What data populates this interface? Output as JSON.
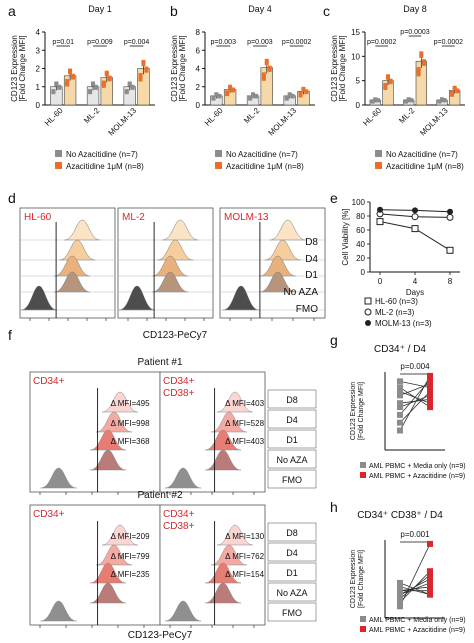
{
  "colors": {
    "gray": "#8c8c8c",
    "orange": "#e8702a",
    "orange_light": "#f3c48f",
    "red": "#d9272e",
    "red_light": "#f1b3ad",
    "bar_fill": "#f6d9a8"
  },
  "labels": {
    "fold": "[Fold Change MFI]",
    "cd123": "CD123-PeCy7",
    "cell_viability": "Cell Viability [%]",
    "days": "Days"
  },
  "panel_letters": [
    "a",
    "b",
    "c",
    "d",
    "e",
    "f",
    "g",
    "h"
  ],
  "legend_abc": [
    {
      "text": "No Azacitidine (n=7)",
      "color": "#8c8c8c"
    },
    {
      "text": "Azacitidine 1μM (n=8)",
      "color": "#e8702a"
    }
  ],
  "hist_d": {
    "samples": [
      "HL-60",
      "ML-2",
      "MOLM-13"
    ],
    "rows": [
      "D8",
      "D4",
      "D1",
      "No AZA",
      "FMO"
    ],
    "xlabel": "CD123-PeCy7"
  },
  "hist_f": {
    "patients": [
      {
        "title": "Patient #1",
        "gates": [
          "CD34+",
          "CD34+ CD38+"
        ],
        "mfi_left": [
          "Δ MFI=495",
          "Δ MFI=998",
          "Δ MFI=368"
        ],
        "mfi_right": [
          "Δ MFI=403",
          "Δ MFI=528",
          "Δ MFI=403"
        ]
      },
      {
        "title": "Patient #2",
        "gates": [
          "CD34+",
          "CD34+ CD38+"
        ],
        "mfi_left": [
          "Δ MFI=209",
          "Δ MFI=799",
          "Δ MFI=235"
        ],
        "mfi_right": [
          "Δ MFI=130",
          "Δ MFI=762",
          "Δ MFI=154"
        ]
      }
    ],
    "rows": [
      "D8",
      "D4",
      "D1",
      "No AZA",
      "FMO"
    ],
    "xlabel": "CD123-PeCy7"
  },
  "chart_data": [
    {
      "panel": "a",
      "type": "bar",
      "title": "Day 1",
      "ylabel": "CD123 Expression",
      "ylabel2": "[Fold Change MFI]",
      "ylim": [
        0,
        4
      ],
      "yticks": [
        0,
        1,
        2,
        3,
        4
      ],
      "categories": [
        "HL-60",
        "ML-2",
        "MOLM-13"
      ],
      "series": [
        {
          "name": "No Azacitidine (n=7)",
          "values": [
            1.0,
            1.0,
            1.0
          ]
        },
        {
          "name": "Azacitidine 1μM (n=8)",
          "values": [
            1.6,
            1.5,
            2.0
          ]
        }
      ],
      "pvalues": [
        "p=0.01",
        "p=0.009",
        "p=0.004"
      ]
    },
    {
      "panel": "b",
      "type": "bar",
      "title": "Day 4",
      "ylabel": "CD123 Expression",
      "ylabel2": "[Fold Change MFI]",
      "ylim": [
        0,
        8
      ],
      "yticks": [
        0,
        2,
        4,
        6,
        8
      ],
      "categories": [
        "HL-60",
        "ML-2",
        "MOLM-13"
      ],
      "series": [
        {
          "name": "No Azacitidine (n=7)",
          "values": [
            1.0,
            1.0,
            1.0
          ]
        },
        {
          "name": "Azacitidine 1μM (n=8)",
          "values": [
            1.7,
            4.1,
            1.5
          ]
        }
      ],
      "pvalues": [
        "p=0.003",
        "p=0.003",
        "p=0.0002"
      ]
    },
    {
      "panel": "c",
      "type": "bar",
      "title": "Day 8",
      "ylabel": "CD123 Expression",
      "ylabel2": "[Fold Change MFI]",
      "ylim": [
        0,
        15
      ],
      "yticks": [
        0,
        5,
        10,
        15
      ],
      "categories": [
        "HL-60",
        "ML-2",
        "MOLM-13"
      ],
      "series": [
        {
          "name": "No Azacitidine (n=7)",
          "values": [
            1.0,
            1.0,
            1.0
          ]
        },
        {
          "name": "Azacitidine 1μM (n=8)",
          "values": [
            5.0,
            9.0,
            3.0
          ]
        }
      ],
      "pvalues": [
        "p=0.0002",
        "p=0.0003",
        "p=0.0002"
      ]
    },
    {
      "panel": "e",
      "type": "line",
      "ylabel": "Cell Viability [%]",
      "xlabel": "Days",
      "ylim": [
        0,
        100
      ],
      "yticks": [
        0,
        20,
        40,
        60,
        80,
        100
      ],
      "x": [
        0,
        4,
        8
      ],
      "series": [
        {
          "name": "HL-60 (n=3)",
          "values": [
            72,
            62,
            31
          ]
        },
        {
          "name": "ML-2 (n=3)",
          "values": [
            83,
            79,
            78
          ]
        },
        {
          "name": "MOLM-13 (n=3)",
          "values": [
            89,
            88,
            86
          ]
        }
      ]
    },
    {
      "panel": "g",
      "type": "scatter",
      "title": "CD34⁺ / D4",
      "ylabel": "CD123 Expression",
      "ylabel2": "[Fold Change MFI]",
      "pvalue": "p=0.004",
      "legend": [
        "AML PBMC + Media only (n=9)",
        "AML PBMC + Azacitidine (n=9)"
      ],
      "pairs": [
        [
          0.25,
          0.95
        ],
        [
          0.35,
          0.75
        ],
        [
          0.45,
          0.9
        ],
        [
          0.55,
          0.7
        ],
        [
          0.6,
          0.65
        ],
        [
          0.7,
          0.85
        ],
        [
          0.75,
          0.6
        ],
        [
          0.8,
          0.55
        ],
        [
          0.88,
          0.8
        ]
      ]
    },
    {
      "panel": "h",
      "type": "scatter",
      "title": "CD34⁺ CD38⁺ / D4",
      "ylabel": "CD123 Expression",
      "ylabel2": "[Fold Change MFI]",
      "pvalue": "p=0.001",
      "legend": [
        "AML PBMC + Media only (n=9)",
        "AML PBMC + Azacitidine (n=9)"
      ],
      "pairs": [
        [
          0.15,
          0.95
        ],
        [
          0.2,
          0.6
        ],
        [
          0.25,
          0.55
        ],
        [
          0.3,
          0.5
        ],
        [
          0.3,
          0.45
        ],
        [
          0.35,
          0.4
        ],
        [
          0.35,
          0.35
        ],
        [
          0.4,
          0.3
        ],
        [
          0.45,
          0.3
        ]
      ]
    }
  ]
}
